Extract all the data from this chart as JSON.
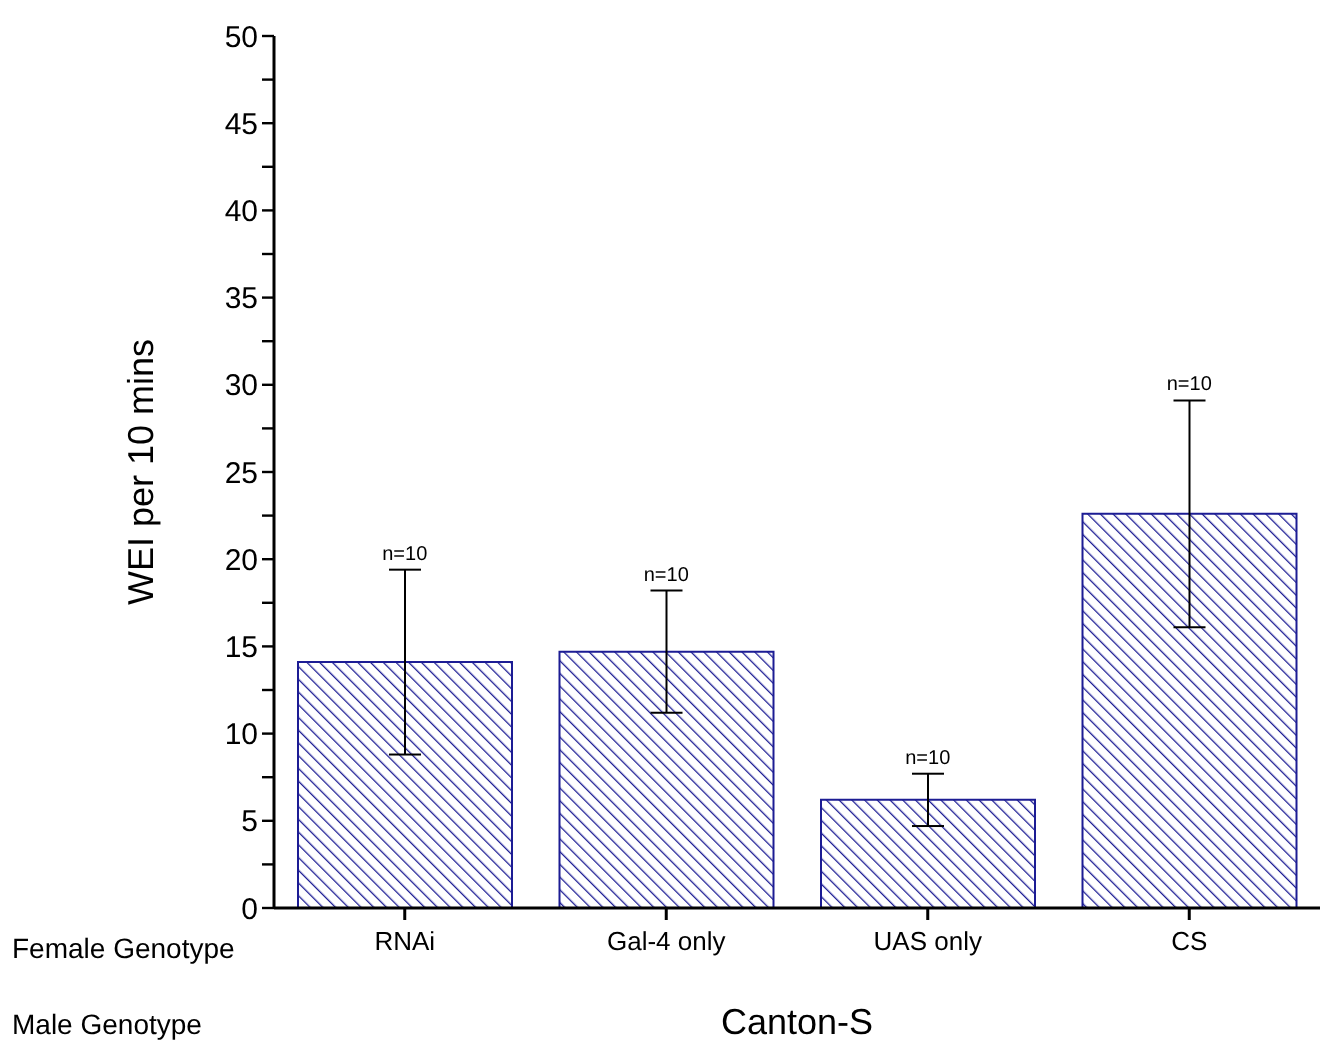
{
  "chart_data": {
    "type": "bar",
    "categories": [
      "RNAi",
      "Gal-4 only",
      "UAS only",
      "CS"
    ],
    "values": [
      14.1,
      14.7,
      6.2,
      22.6
    ],
    "errors": [
      5.3,
      3.5,
      1.5,
      6.5
    ],
    "color": "#1c1c94",
    "xlabel": "Canton-S",
    "ylabel": "WEI per 10 mins",
    "ylim": [
      0,
      50
    ],
    "yticks": [
      0,
      {
        "value": 2.5,
        "label": null
      },
      5,
      {
        "value": 7.5,
        "label": null
      },
      10,
      {
        "value": 12.5,
        "label": null
      },
      15,
      {
        "value": 17.5,
        "label": null
      },
      20,
      {
        "value": 22.5,
        "label": null
      },
      25,
      {
        "value": 27.5,
        "label": null
      },
      30,
      {
        "value": 32.5,
        "label": null
      },
      35,
      {
        "value": 37.5,
        "label": null
      },
      40,
      {
        "value": 42.5,
        "label": null
      },
      45,
      {
        "value": 47.5,
        "label": null
      },
      50
    ],
    "annotations": [
      {
        "text": "n=10",
        "x": "RNAi",
        "y": 19.4
      },
      {
        "text": "n=10",
        "x": "Gal-4 only",
        "y": 18.2
      },
      {
        "text": "n=10",
        "x": "UAS only",
        "y": 7.7
      },
      {
        "text": "n=10",
        "x": "CS",
        "y": 29.1
      },
      "Female Genotype",
      "Male Genotype"
    ],
    "grid": false,
    "legend": false
  }
}
